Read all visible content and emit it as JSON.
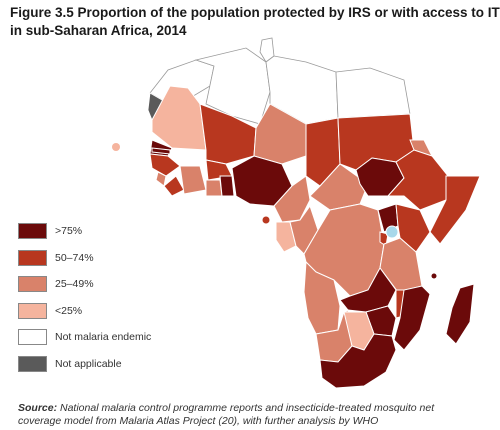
{
  "figure": {
    "title": "Figure 3.5 Proportion of the population protected by IRS or with access to IT\nin sub-Saharan Africa, 2014",
    "source_label": "Source:",
    "source_text": " National malaria control programme reports and insecticide-treated mosquito net\ncoverage model from Malaria Atlas Project (20), with further analysis by WHO"
  },
  "legend": [
    {
      "label": ">75%",
      "color": "#6b0a0a"
    },
    {
      "label": "50–74%",
      "color": "#b8371f"
    },
    {
      "label": "25–49%",
      "color": "#d9826a"
    },
    {
      "label": "<25%",
      "color": "#f5b49e"
    },
    {
      "label": "Not malaria endemic",
      "color": "#ffffff"
    },
    {
      "label": "Not applicable",
      "color": "#5a5a5a"
    }
  ],
  "colors": {
    "over75": "#6b0a0a",
    "c50_74": "#b8371f",
    "c25_49": "#d9826a",
    "under25": "#f5b49e",
    "not_endemic": "#ffffff",
    "not_applicable": "#5a5a5a",
    "water": "#a8d8ea",
    "border": "#ffffff",
    "outline": "#9a9a9a"
  }
}
